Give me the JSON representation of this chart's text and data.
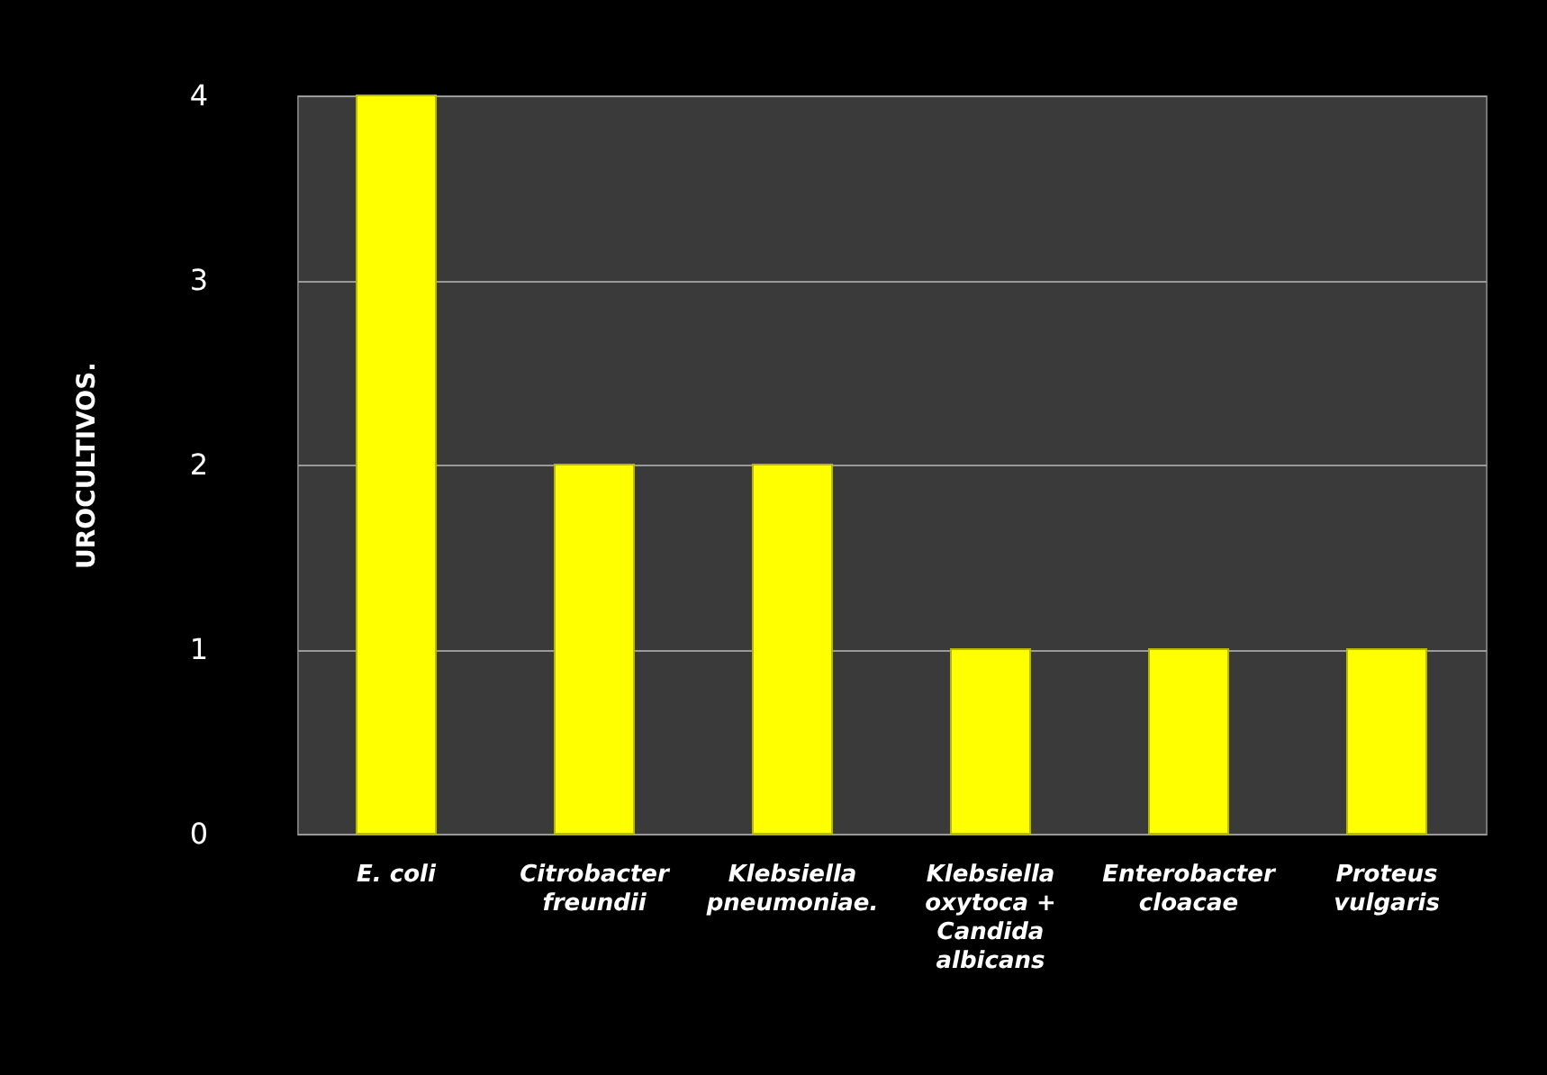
{
  "chart_data": {
    "type": "bar",
    "ylabel": "UROCULTIVOS.",
    "categories": [
      "E. coli",
      "Citrobacter freundii",
      "Klebsiella pneumoniae.",
      "Klebsiella oxytoca + Candida albicans",
      "Enterobacter cloacae",
      "Proteus vulgaris"
    ],
    "values": [
      4,
      2,
      2,
      1,
      1,
      1
    ],
    "color": "#ffff00",
    "ylim": [
      0,
      4
    ],
    "yticks": [
      0,
      1,
      2,
      3,
      4
    ],
    "grid": "y"
  }
}
